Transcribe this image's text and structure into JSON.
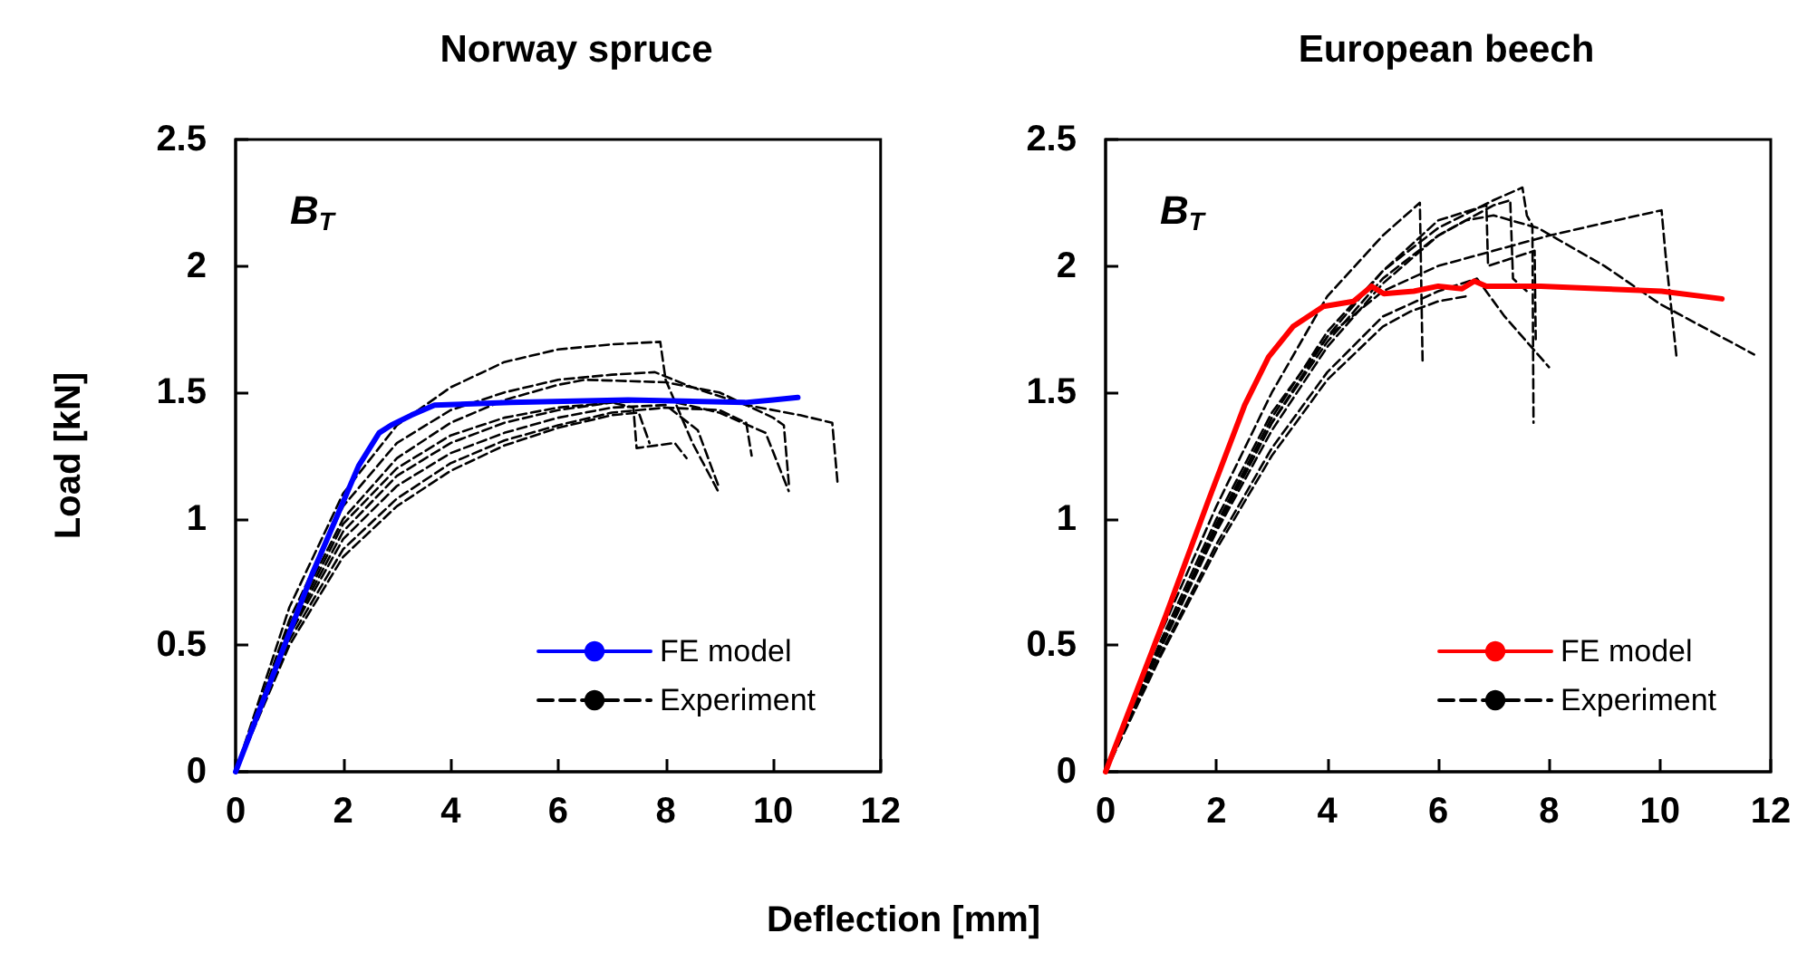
{
  "chart_data": [
    {
      "type": "line",
      "title": "Norway spruce",
      "xlabel": "Deflection [mm]",
      "ylabel": "Load [kN]",
      "annotations": [
        "B$_{T}$"
      ],
      "xlim": [
        0,
        12
      ],
      "xticks": [
        0,
        2,
        4,
        6,
        8,
        10,
        12
      ],
      "ylim": [
        0,
        2.5
      ],
      "yticks": [
        0,
        0.5,
        1,
        1.5,
        2,
        2.5
      ],
      "grid": false,
      "legend": "bottom right",
      "marker": "none",
      "series": [
        {
          "name": "FE model",
          "color": "#0000ff",
          "line_style": "solid",
          "x": [
            0,
            1.42,
            2.29,
            2.67,
            2.89,
            3.27,
            3.7,
            5.12,
            7.3,
            9.48,
            10,
            10.46
          ],
          "values": [
            0,
            0.78,
            1.21,
            1.34,
            1.37,
            1.41,
            1.45,
            1.46,
            1.47,
            1.46,
            1.47,
            1.48
          ]
        },
        {
          "name": "Experiment",
          "color": "#000000",
          "line_style": "dashed",
          "x": [
            0,
            1,
            2,
            3,
            4,
            5,
            6,
            7,
            7.9,
            8,
            8.5,
            9
          ],
          "values": [
            0,
            0.65,
            1.1,
            1.37,
            1.52,
            1.62,
            1.67,
            1.69,
            1.7,
            1.55,
            1.3,
            1.1
          ]
        },
        {
          "color": "#000000",
          "line_style": "dashed",
          "x": [
            0,
            1,
            2,
            3,
            4,
            5,
            6,
            7,
            7.8,
            8.5,
            9.5,
            10.5,
            11.1,
            11.2
          ],
          "values": [
            0,
            0.6,
            1.05,
            1.3,
            1.43,
            1.5,
            1.55,
            1.57,
            1.58,
            1.52,
            1.45,
            1.41,
            1.38,
            1.14
          ]
        },
        {
          "color": "#000000",
          "line_style": "dashed",
          "x": [
            0,
            1,
            2,
            3,
            4,
            5,
            6,
            6.5,
            8,
            9,
            10,
            10.2,
            10.3
          ],
          "values": [
            0,
            0.58,
            1.0,
            1.24,
            1.38,
            1.47,
            1.53,
            1.55,
            1.54,
            1.5,
            1.4,
            1.37,
            1.12
          ]
        },
        {
          "color": "#000000",
          "line_style": "dashed",
          "x": [
            0,
            1,
            2,
            3,
            4,
            5,
            6,
            7,
            7.4,
            7.46,
            8.17,
            8.39
          ],
          "values": [
            0,
            0.56,
            0.98,
            1.2,
            1.33,
            1.4,
            1.44,
            1.46,
            1.44,
            1.28,
            1.3,
            1.24
          ]
        },
        {
          "color": "#000000",
          "line_style": "dashed",
          "x": [
            0,
            1,
            2,
            3,
            4,
            5,
            6,
            7,
            8,
            9,
            9.86,
            10.29
          ],
          "values": [
            0,
            0.55,
            0.95,
            1.17,
            1.3,
            1.38,
            1.43,
            1.46,
            1.47,
            1.42,
            1.34,
            1.11
          ]
        },
        {
          "color": "#000000",
          "line_style": "dashed",
          "x": [
            0,
            1,
            2,
            3,
            4,
            5,
            6,
            7,
            8,
            8.6,
            9.0
          ],
          "values": [
            0,
            0.54,
            0.92,
            1.13,
            1.26,
            1.34,
            1.4,
            1.44,
            1.45,
            1.35,
            1.12
          ]
        },
        {
          "color": "#000000",
          "line_style": "dashed",
          "x": [
            0,
            1,
            2,
            3,
            4,
            5,
            6,
            7,
            8,
            9,
            9.5,
            9.6
          ],
          "values": [
            0,
            0.52,
            0.88,
            1.08,
            1.22,
            1.31,
            1.37,
            1.42,
            1.44,
            1.43,
            1.38,
            1.25
          ]
        },
        {
          "color": "#000000",
          "line_style": "dashed",
          "x": [
            0,
            1,
            2,
            3,
            4,
            5,
            6,
            7,
            7.5,
            7.7
          ],
          "values": [
            0,
            0.5,
            0.85,
            1.05,
            1.19,
            1.29,
            1.36,
            1.41,
            1.42,
            1.3
          ]
        }
      ]
    },
    {
      "type": "line",
      "title": "European beech",
      "annotations": [
        "B$_{T}$"
      ],
      "xlim": [
        0,
        12
      ],
      "xticks": [
        0,
        2,
        4,
        6,
        8,
        10,
        12
      ],
      "ylim": [
        0,
        2.5
      ],
      "yticks": [
        0,
        0.5,
        1,
        1.5,
        2,
        2.5
      ],
      "grid": false,
      "legend": "bottom right",
      "marker": "none",
      "series": [
        {
          "name": "FE model",
          "color": "#ff0000",
          "line_style": "solid",
          "x": [
            0,
            1.09,
            1.85,
            2.51,
            2.94,
            3.38,
            3.93,
            4.47,
            4.8,
            5.02,
            5.56,
            6.0,
            6.43,
            6.65,
            6.87,
            7.85,
            8.94,
            10.03,
            11.12
          ],
          "values": [
            0,
            0.62,
            1.07,
            1.45,
            1.64,
            1.76,
            1.84,
            1.86,
            1.92,
            1.89,
            1.9,
            1.92,
            1.91,
            1.94,
            1.92,
            1.92,
            1.91,
            1.9,
            1.87
          ]
        },
        {
          "name": "Experiment",
          "color": "#000000",
          "line_style": "dashed",
          "x": [
            0,
            1,
            2,
            3,
            4,
            5,
            5.67,
            5.72
          ],
          "values": [
            0,
            0.55,
            1.05,
            1.5,
            1.88,
            2.12,
            2.25,
            1.61
          ]
        },
        {
          "color": "#000000",
          "line_style": "dashed",
          "x": [
            0,
            1,
            2,
            3,
            4,
            5,
            6,
            7,
            7.52,
            7.6,
            7.7,
            7.72
          ],
          "values": [
            0,
            0.5,
            0.98,
            1.4,
            1.74,
            1.98,
            2.15,
            2.26,
            2.31,
            2.2,
            2.16,
            1.38
          ]
        },
        {
          "color": "#000000",
          "line_style": "dashed",
          "x": [
            0,
            1,
            2,
            3,
            4,
            5,
            6,
            7,
            8,
            9,
            10.03,
            10.1,
            10.3
          ],
          "values": [
            0,
            0.52,
            1.0,
            1.42,
            1.72,
            1.9,
            2.0,
            2.06,
            2.12,
            2.17,
            2.22,
            2.05,
            1.64
          ]
        },
        {
          "color": "#000000",
          "line_style": "dashed",
          "x": [
            0,
            1,
            2,
            3,
            4,
            5,
            6,
            6.5,
            7,
            7.8,
            9,
            10,
            11.7
          ],
          "values": [
            0,
            0.5,
            0.96,
            1.38,
            1.7,
            1.95,
            2.12,
            2.18,
            2.2,
            2.15,
            2.0,
            1.85,
            1.65
          ]
        },
        {
          "color": "#000000",
          "line_style": "dashed",
          "x": [
            0,
            1,
            2,
            3,
            4,
            5,
            6,
            6.7,
            7.2,
            8.0
          ],
          "values": [
            0,
            0.47,
            0.9,
            1.28,
            1.58,
            1.8,
            1.9,
            1.95,
            1.8,
            1.6
          ]
        },
        {
          "color": "#000000",
          "line_style": "dashed",
          "x": [
            0,
            1,
            2,
            3,
            4,
            5,
            6,
            6.87,
            6.9,
            7.74,
            7.76
          ],
          "values": [
            0,
            0.5,
            0.97,
            1.38,
            1.72,
            1.98,
            2.18,
            2.24,
            2.0,
            2.06,
            1.71
          ]
        },
        {
          "color": "#000000",
          "line_style": "dashed",
          "x": [
            0,
            1,
            2,
            3,
            4,
            5,
            6,
            7,
            7.3,
            7.35,
            7.6
          ],
          "values": [
            0,
            0.49,
            0.95,
            1.35,
            1.68,
            1.93,
            2.12,
            2.24,
            2.26,
            1.95,
            1.9
          ]
        },
        {
          "color": "#000000",
          "line_style": "dashed",
          "x": [
            0,
            1,
            2,
            3,
            4,
            5,
            5.5,
            6,
            6.5
          ],
          "values": [
            0,
            0.46,
            0.88,
            1.25,
            1.55,
            1.76,
            1.82,
            1.86,
            1.88
          ]
        }
      ]
    }
  ]
}
